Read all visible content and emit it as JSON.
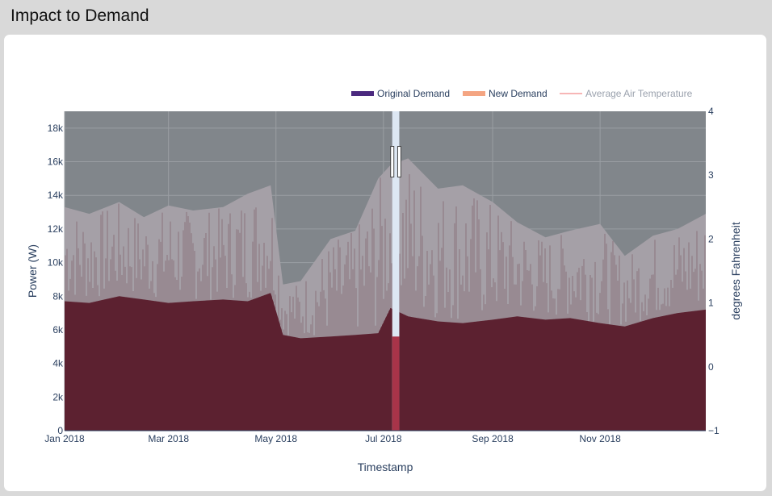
{
  "page": {
    "title": "Impact to Demand"
  },
  "chart_data": {
    "type": "area",
    "xlabel": "Timestamp",
    "ylabel": "Power (W)",
    "y2label": "degrees Fahrenheit",
    "ylim": [
      0,
      19000
    ],
    "y2lim": [
      -1,
      4
    ],
    "yticks": [
      0,
      2000,
      4000,
      6000,
      8000,
      10000,
      12000,
      14000,
      16000,
      18000
    ],
    "ytick_labels": [
      "0",
      "2k",
      "4k",
      "6k",
      "8k",
      "10k",
      "12k",
      "14k",
      "16k",
      "18k"
    ],
    "y2ticks": [
      -1,
      0,
      1,
      2,
      3,
      4
    ],
    "y2tick_labels": [
      "−1",
      "0",
      "1",
      "2",
      "3",
      "4"
    ],
    "xlim": [
      "2018-01-01",
      "2018-12-31"
    ],
    "xticks": [
      "2018-01-01",
      "2018-03-01",
      "2018-05-01",
      "2018-07-01",
      "2018-09-01",
      "2018-11-01"
    ],
    "xtick_labels": [
      "Jan 2018",
      "Mar 2018",
      "May 2018",
      "Jul 2018",
      "Sep 2018",
      "Nov 2018"
    ],
    "legend_position": "top-right",
    "grid": true,
    "legend": [
      {
        "name": "Original Demand",
        "color": "#4b2a7f"
      },
      {
        "name": "New Demand",
        "color": "#f4a582"
      },
      {
        "name": "Average Air Temperature",
        "color": "#f7b6b6"
      }
    ],
    "highlight_range": [
      "2018-07-06",
      "2018-07-10"
    ],
    "colors": {
      "plot_bg": "#81868b",
      "base_fill": "#5c2130",
      "peak_fill": "#a5a0a7",
      "highlight_band": "#dde7f3",
      "highlight_fill": "#a83449"
    },
    "series": [
      {
        "name": "Original Demand",
        "x": [
          "2018-01-01",
          "2018-01-15",
          "2018-02-01",
          "2018-02-15",
          "2018-03-01",
          "2018-03-15",
          "2018-04-01",
          "2018-04-15",
          "2018-04-28",
          "2018-05-05",
          "2018-05-15",
          "2018-06-01",
          "2018-06-15",
          "2018-06-28",
          "2018-07-05",
          "2018-07-15",
          "2018-08-01",
          "2018-08-15",
          "2018-09-01",
          "2018-09-15",
          "2018-10-01",
          "2018-10-15",
          "2018-11-01",
          "2018-11-15",
          "2018-12-01",
          "2018-12-15",
          "2018-12-31"
        ],
        "low": [
          7700,
          7600,
          8000,
          7800,
          7600,
          7700,
          7800,
          7700,
          8200,
          5700,
          5500,
          5600,
          5700,
          5800,
          7300,
          6800,
          6500,
          6400,
          6600,
          6800,
          6600,
          6700,
          6400,
          6200,
          6700,
          7000,
          7200
        ],
        "high": [
          13300,
          12900,
          13600,
          12700,
          13400,
          13100,
          13300,
          14100,
          14600,
          8700,
          8900,
          11400,
          11900,
          15000,
          15800,
          16200,
          14400,
          14600,
          13600,
          12400,
          11500,
          11900,
          12300,
          10400,
          11600,
          12000,
          12900
        ]
      },
      {
        "name": "New Demand",
        "x": [
          "2018-07-06",
          "2018-07-10"
        ],
        "low": [
          0,
          0
        ],
        "high": [
          5600,
          5600
        ]
      }
    ]
  }
}
